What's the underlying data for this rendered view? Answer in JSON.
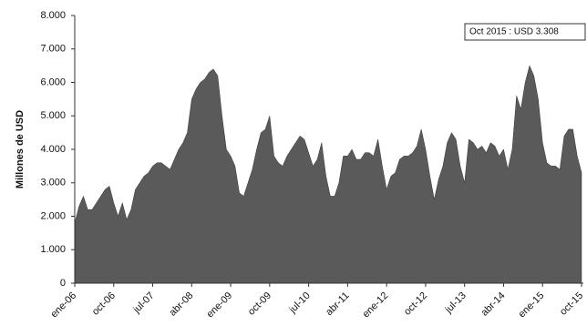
{
  "chart_data": {
    "type": "area",
    "y_label": "Millones de USD",
    "annotation": "Oct 2015 : USD 3.308",
    "color": "#5a5a5a",
    "categories": [
      "ene-06",
      null,
      null,
      null,
      null,
      null,
      null,
      null,
      null,
      "oct-06",
      null,
      null,
      null,
      null,
      null,
      null,
      null,
      null,
      "jul-07",
      null,
      null,
      null,
      null,
      null,
      null,
      null,
      null,
      "abr-08",
      null,
      null,
      null,
      null,
      null,
      null,
      null,
      null,
      "ene-09",
      null,
      null,
      null,
      null,
      null,
      null,
      null,
      null,
      "oct-09",
      null,
      null,
      null,
      null,
      null,
      null,
      null,
      null,
      "jul-10",
      null,
      null,
      null,
      null,
      null,
      null,
      null,
      null,
      "abr-11",
      null,
      null,
      null,
      null,
      null,
      null,
      null,
      null,
      "ene-12",
      null,
      null,
      null,
      null,
      null,
      null,
      null,
      null,
      "oct-12",
      null,
      null,
      null,
      null,
      null,
      null,
      null,
      null,
      "jul-13",
      null,
      null,
      null,
      null,
      null,
      null,
      null,
      null,
      "abr-14",
      null,
      null,
      null,
      null,
      null,
      null,
      null,
      null,
      "ene-15",
      null,
      null,
      null,
      null,
      null,
      null,
      null,
      null,
      "oct-15"
    ],
    "values": [
      1800,
      2300,
      2600,
      2200,
      2200,
      2400,
      2600,
      2800,
      2900,
      2400,
      2000,
      2400,
      1900,
      2200,
      2800,
      3000,
      3200,
      3300,
      3500,
      3600,
      3600,
      3500,
      3400,
      3700,
      4000,
      4200,
      4500,
      5500,
      5800,
      6000,
      6100,
      6300,
      6400,
      6200,
      5000,
      4000,
      3800,
      3500,
      2700,
      2600,
      3000,
      3400,
      4000,
      4500,
      4600,
      5000,
      3800,
      3600,
      3500,
      3800,
      4000,
      4200,
      4400,
      4300,
      3900,
      3500,
      3700,
      4200,
      3200,
      2600,
      2600,
      3000,
      3800,
      3800,
      4000,
      3700,
      3700,
      3900,
      3900,
      3800,
      4300,
      3500,
      2800,
      3200,
      3300,
      3700,
      3800,
      3800,
      3900,
      4100,
      4600,
      4000,
      3200,
      2500,
      3100,
      3500,
      4200,
      4500,
      4300,
      3500,
      3000,
      4300,
      4200,
      4000,
      4100,
      3900,
      4200,
      4100,
      3800,
      4000,
      3400,
      4000,
      5600,
      5200,
      6000,
      6500,
      6200,
      5500,
      4200,
      3600,
      3500,
      3500,
      3400,
      4400,
      4600,
      4600,
      3800,
      3308
    ],
    "ylim": [
      0,
      8000
    ],
    "yticks": [
      {
        "value": 0,
        "label": "0"
      },
      {
        "value": 1000,
        "label": "1.000"
      },
      {
        "value": 2000,
        "label": "2.000"
      },
      {
        "value": 3000,
        "label": "3.000"
      },
      {
        "value": 4000,
        "label": "4.000"
      },
      {
        "value": 5000,
        "label": "5.000"
      },
      {
        "value": 6000,
        "label": "6.000"
      },
      {
        "value": 7000,
        "label": "7.000"
      },
      {
        "value": 8000,
        "label": "8.000"
      }
    ]
  }
}
